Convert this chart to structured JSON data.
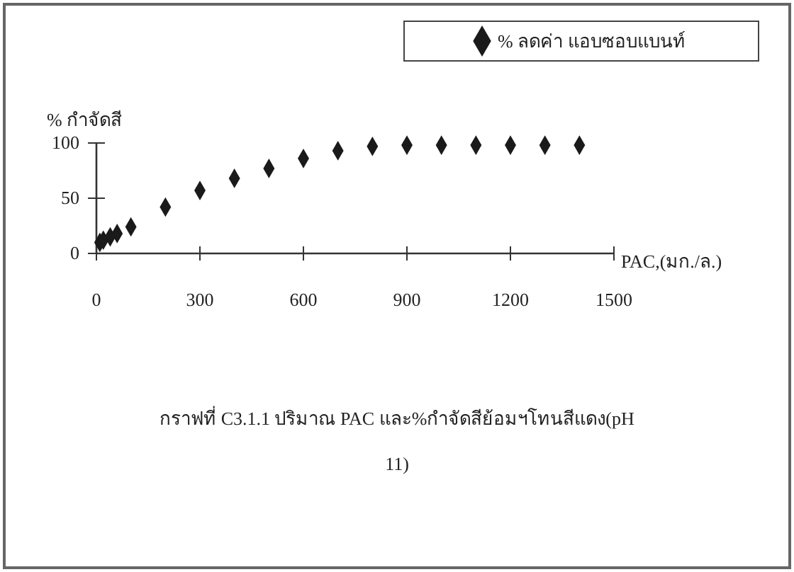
{
  "chart_data": {
    "type": "scatter",
    "xlabel": "PAC,(มก./ล.)",
    "ylabel": "% กำจัดสี",
    "x": [
      10,
      20,
      40,
      60,
      100,
      200,
      300,
      400,
      500,
      600,
      700,
      800,
      900,
      1000,
      1100,
      1200,
      1300,
      1400
    ],
    "series": [
      {
        "name": "% ลดค่า แอบซอบแบนท์",
        "color": "#1a1a1a",
        "values": [
          10,
          12,
          15,
          18,
          24,
          42,
          57,
          68,
          77,
          86,
          93,
          97,
          98,
          98,
          98,
          98,
          98,
          98
        ]
      }
    ],
    "xlim": [
      0,
      1500
    ],
    "xticks": [
      0,
      300,
      600,
      900,
      1200,
      1500
    ],
    "ylim": [
      0,
      100
    ],
    "yticks": [
      0,
      50,
      100
    ],
    "marker": "diamond",
    "legend": "top right",
    "grid": false,
    "annotations": [
      "กราฟที่ C3.1.1 ปริมาณ PAC และ%กำจัดสีย้อมฯโทนสีแดง(pH 11)"
    ]
  }
}
